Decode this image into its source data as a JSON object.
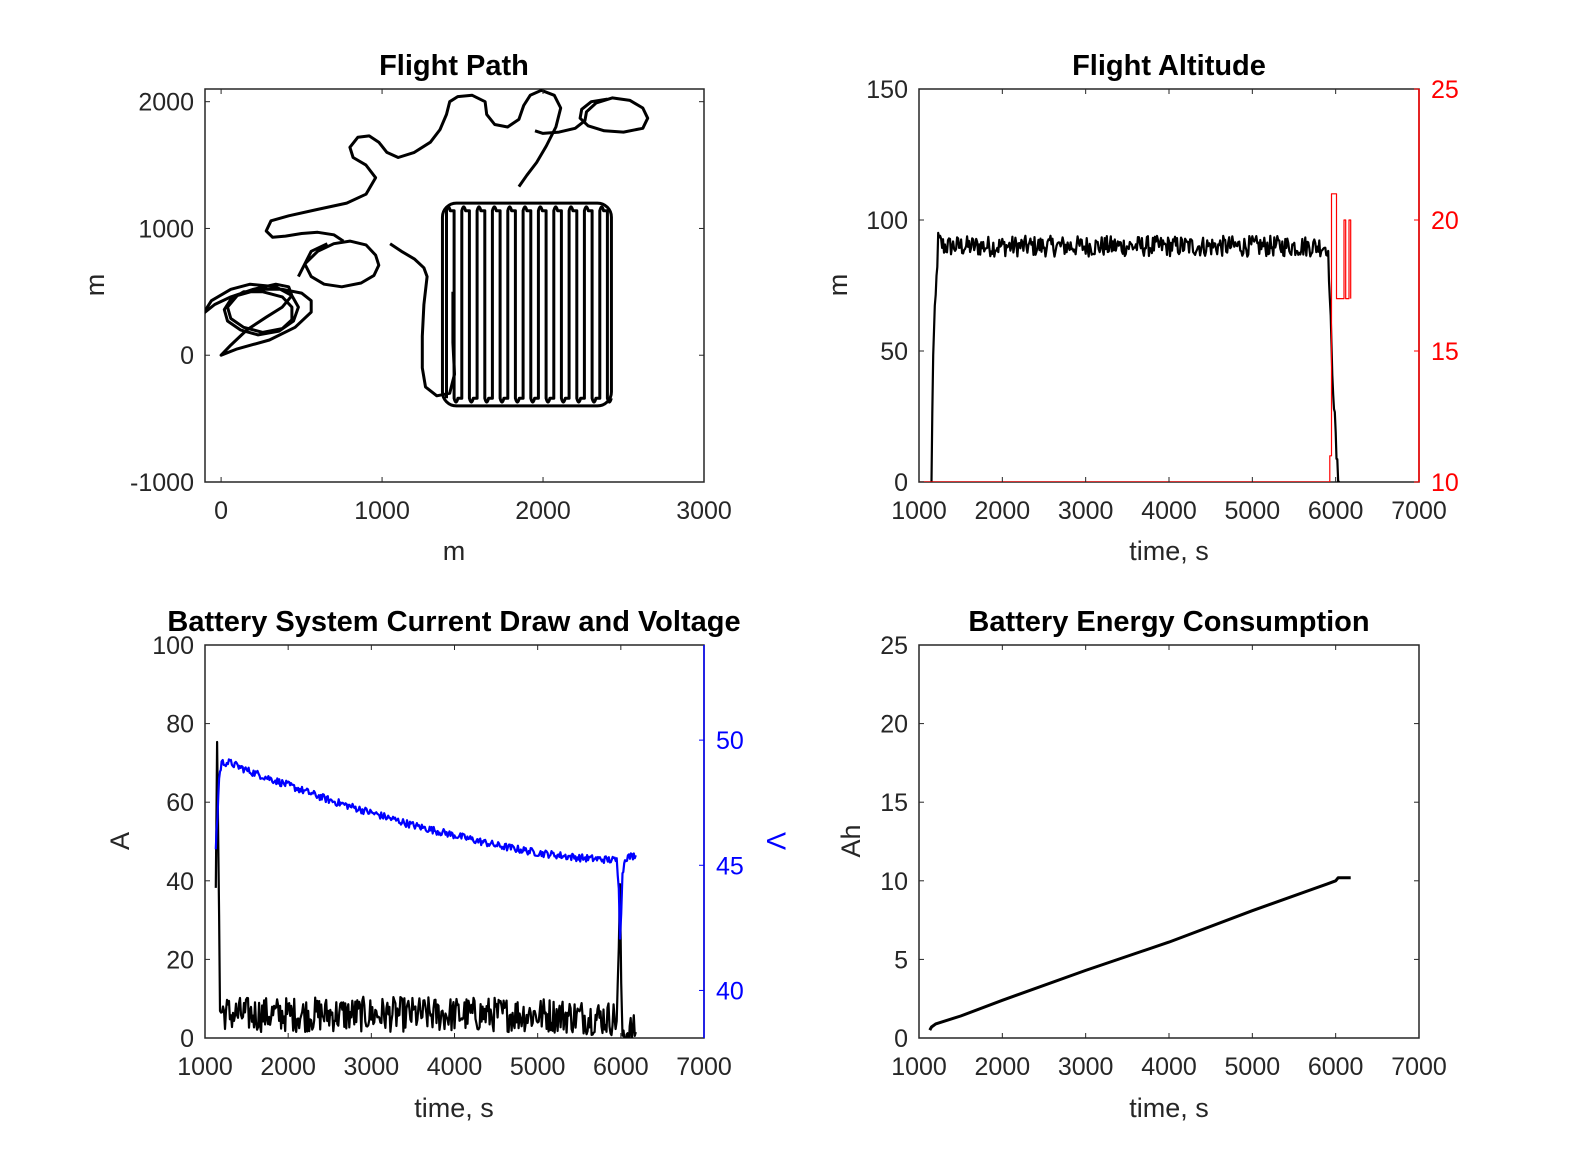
{
  "chart_data": [
    {
      "id": "flight_path",
      "type": "line",
      "title": "Flight Path",
      "xlabel": "m",
      "ylabel": "m",
      "xlim": [
        -100,
        3000
      ],
      "ylim": [
        -1000,
        2100
      ],
      "xticks": [
        0,
        1000,
        2000,
        3000
      ],
      "yticks": [
        -1000,
        0,
        1000,
        2000
      ],
      "grid": false,
      "series": [
        {
          "color": "#000000",
          "segments": [
            [
              [
                -150,
                250
              ],
              [
                -120,
                320
              ],
              [
                -40,
                400
              ],
              [
                60,
                460
              ],
              [
                200,
                520
              ],
              [
                340,
                560
              ],
              [
                420,
                540
              ],
              [
                440,
                470
              ],
              [
                380,
                380
              ],
              [
                280,
                300
              ],
              [
                160,
                200
              ],
              [
                60,
                80
              ],
              [
                0,
                0
              ],
              [
                100,
                50
              ],
              [
                300,
                120
              ],
              [
                460,
                220
              ],
              [
                560,
                340
              ],
              [
                560,
                430
              ],
              [
                500,
                490
              ],
              [
                380,
                520
              ],
              [
                240,
                520
              ],
              [
                100,
                470
              ],
              [
                40,
                380
              ],
              [
                60,
                290
              ],
              [
                140,
                220
              ],
              [
                260,
                180
              ],
              [
                380,
                210
              ],
              [
                440,
                280
              ],
              [
                440,
                380
              ],
              [
                380,
                460
              ],
              [
                260,
                500
              ],
              [
                140,
                500
              ],
              [
                60,
                440
              ],
              [
                20,
                360
              ],
              [
                40,
                270
              ],
              [
                120,
                200
              ],
              [
                230,
                160
              ],
              [
                360,
                190
              ],
              [
                450,
                270
              ],
              [
                480,
                380
              ],
              [
                440,
                470
              ],
              [
                340,
                540
              ],
              [
                180,
                560
              ],
              [
                60,
                520
              ],
              [
                -60,
                430
              ],
              [
                -150,
                250
              ]
            ],
            [
              [
                480,
                620
              ],
              [
                520,
                720
              ],
              [
                600,
                820
              ],
              [
                700,
                880
              ],
              [
                800,
                900
              ],
              [
                900,
                870
              ],
              [
                960,
                790
              ],
              [
                980,
                710
              ],
              [
                950,
                630
              ],
              [
                870,
                570
              ],
              [
                750,
                540
              ],
              [
                640,
                560
              ],
              [
                560,
                620
              ],
              [
                520,
                720
              ],
              [
                560,
                820
              ],
              [
                660,
                880
              ]
            ],
            [
              [
                760,
                900
              ],
              [
                700,
                950
              ],
              [
                600,
                970
              ],
              [
                500,
                960
              ],
              [
                400,
                940
              ],
              [
                320,
                930
              ],
              [
                280,
                980
              ],
              [
                310,
                1060
              ],
              [
                420,
                1100
              ],
              [
                600,
                1150
              ],
              [
                780,
                1200
              ],
              [
                900,
                1270
              ],
              [
                960,
                1400
              ],
              [
                900,
                1500
              ],
              [
                820,
                1560
              ],
              [
                800,
                1640
              ],
              [
                850,
                1720
              ],
              [
                920,
                1730
              ],
              [
                980,
                1680
              ],
              [
                1030,
                1600
              ],
              [
                1100,
                1560
              ],
              [
                1200,
                1600
              ],
              [
                1300,
                1680
              ],
              [
                1360,
                1780
              ],
              [
                1400,
                1900
              ],
              [
                1420,
                2000
              ],
              [
                1470,
                2040
              ],
              [
                1560,
                2050
              ],
              [
                1640,
                2000
              ],
              [
                1650,
                1900
              ],
              [
                1700,
                1820
              ],
              [
                1780,
                1800
              ],
              [
                1850,
                1860
              ],
              [
                1880,
                1970
              ],
              [
                1920,
                2050
              ],
              [
                1990,
                2090
              ],
              [
                2070,
                2050
              ],
              [
                2110,
                1950
              ],
              [
                2080,
                1800
              ],
              [
                2020,
                1650
              ],
              [
                1960,
                1520
              ],
              [
                1900,
                1420
              ],
              [
                1850,
                1330
              ]
            ],
            [
              [
                1050,
                880
              ],
              [
                1120,
                820
              ],
              [
                1200,
                760
              ],
              [
                1260,
                690
              ],
              [
                1280,
                620
              ],
              [
                1260,
                400
              ],
              [
                1250,
                150
              ],
              [
                1250,
                -100
              ],
              [
                1270,
                -250
              ],
              [
                1340,
                -320
              ],
              [
                1420,
                -300
              ],
              [
                1450,
                -150
              ],
              [
                1440,
                100
              ],
              [
                1440,
                500
              ]
            ],
            [
              [
                2400,
                2020
              ],
              [
                2300,
                2000
              ],
              [
                2240,
                1940
              ],
              [
                2230,
                1870
              ],
              [
                2280,
                1810
              ],
              [
                2380,
                1770
              ],
              [
                2500,
                1760
              ],
              [
                2620,
                1790
              ],
              [
                2650,
                1870
              ],
              [
                2620,
                1950
              ],
              [
                2540,
                2010
              ],
              [
                2430,
                2030
              ],
              [
                2330,
                1990
              ],
              [
                2270,
                1920
              ],
              [
                2260,
                1850
              ],
              [
                2200,
                1790
              ],
              [
                2100,
                1760
              ],
              [
                2000,
                1750
              ],
              [
                1950,
                1770
              ]
            ]
          ]
        }
      ],
      "raster_box": {
        "x": [
          1400,
          2400
        ],
        "y": [
          -400,
          1200
        ],
        "passes": 22
      }
    },
    {
      "id": "flight_altitude",
      "type": "line",
      "title": "Flight Altitude",
      "xlabel": "time, s",
      "ylabel": "m",
      "xlim": [
        1000,
        7000
      ],
      "ylim": [
        0,
        150
      ],
      "xticks": [
        1000,
        2000,
        3000,
        4000,
        5000,
        6000,
        7000
      ],
      "yticks": [
        0,
        50,
        100,
        150
      ],
      "y2lim": [
        10,
        25
      ],
      "y2ticks": [
        10,
        15,
        20,
        25
      ],
      "y2_color": "#ff0000",
      "grid": false,
      "series": [
        {
          "color": "#000000",
          "points": [
            [
              1150,
              0
            ],
            [
              1170,
              50
            ],
            [
              1200,
              70
            ],
            [
              1230,
              92
            ],
            [
              1300,
              90
            ],
            [
              2000,
              90
            ],
            [
              3000,
              90
            ],
            [
              4000,
              90
            ],
            [
              5000,
              90
            ],
            [
              5600,
              90
            ],
            [
              5900,
              90
            ],
            [
              5920,
              80
            ],
            [
              5950,
              50
            ],
            [
              5980,
              30
            ],
            [
              6010,
              10
            ],
            [
              6030,
              0
            ],
            [
              6050,
              0
            ]
          ],
          "noise": 4
        },
        {
          "color": "#ff0000",
          "axis": "right",
          "points": [
            [
              1000,
              10
            ],
            [
              5900,
              10
            ],
            [
              5930,
              10
            ],
            [
              5930,
              11
            ],
            [
              5950,
              11
            ],
            [
              5950,
              21
            ],
            [
              6010,
              21
            ],
            [
              6010,
              17
            ],
            [
              6100,
              17
            ],
            [
              6100,
              20
            ],
            [
              6120,
              20
            ],
            [
              6120,
              17
            ],
            [
              6160,
              17
            ],
            [
              6160,
              20
            ],
            [
              6180,
              20
            ],
            [
              6180,
              17
            ]
          ]
        }
      ]
    },
    {
      "id": "battery_current_voltage",
      "type": "line",
      "title": "Battery System Current Draw and Voltage",
      "xlabel": "time, s",
      "ylabel": "A",
      "y2label": "V",
      "xlim": [
        1000,
        7000
      ],
      "ylim": [
        0,
        100
      ],
      "xticks": [
        1000,
        2000,
        3000,
        4000,
        5000,
        6000,
        7000
      ],
      "yticks": [
        0,
        20,
        40,
        60,
        80,
        100
      ],
      "y2lim": [
        38.1,
        53.8
      ],
      "y2ticks": [
        40,
        45,
        50
      ],
      "y2_color": "#0000ff",
      "grid": false,
      "series": [
        {
          "color": "#000000",
          "axis": "left",
          "points": [
            [
              1130,
              40
            ],
            [
              1145,
              79
            ],
            [
              1160,
              50
            ],
            [
              1170,
              30
            ],
            [
              1180,
              7
            ],
            [
              1300,
              6
            ],
            [
              2000,
              6
            ],
            [
              3000,
              6
            ],
            [
              4000,
              6
            ],
            [
              5000,
              6
            ],
            [
              5900,
              5
            ],
            [
              5950,
              5
            ],
            [
              5975,
              20
            ],
            [
              5990,
              40
            ],
            [
              6005,
              10
            ],
            [
              6020,
              1.5
            ],
            [
              6180,
              1.5
            ]
          ],
          "noise": 4.5
        },
        {
          "color": "#0000ff",
          "axis": "right",
          "points": [
            [
              1130,
              45.7
            ],
            [
              1150,
              47
            ],
            [
              1170,
              48.5
            ],
            [
              1200,
              49.1
            ],
            [
              1300,
              49.1
            ],
            [
              1500,
              48.8
            ],
            [
              2000,
              48.2
            ],
            [
              2500,
              47.6
            ],
            [
              3000,
              47.1
            ],
            [
              3500,
              46.6
            ],
            [
              4000,
              46.2
            ],
            [
              4500,
              45.8
            ],
            [
              5000,
              45.5
            ],
            [
              5500,
              45.3
            ],
            [
              5950,
              45.2
            ],
            [
              5975,
              44.2
            ],
            [
              5990,
              42.2
            ],
            [
              6005,
              43.2
            ],
            [
              6020,
              44.6
            ],
            [
              6050,
              45.3
            ],
            [
              6180,
              45.4
            ]
          ],
          "noise": 0.15
        }
      ]
    },
    {
      "id": "battery_energy",
      "type": "line",
      "title": "Battery Energy Consumption",
      "xlabel": "time, s",
      "ylabel": "Ah",
      "xlim": [
        1000,
        7000
      ],
      "ylim": [
        0,
        25
      ],
      "xticks": [
        1000,
        2000,
        3000,
        4000,
        5000,
        6000,
        7000
      ],
      "yticks": [
        0,
        5,
        10,
        15,
        20,
        25
      ],
      "grid": false,
      "series": [
        {
          "color": "#000000",
          "points": [
            [
              1130,
              0.5
            ],
            [
              1150,
              0.7
            ],
            [
              1200,
              0.9
            ],
            [
              1500,
              1.4
            ],
            [
              2000,
              2.4
            ],
            [
              3000,
              4.3
            ],
            [
              4000,
              6.1
            ],
            [
              5000,
              8.1
            ],
            [
              5900,
              9.8
            ],
            [
              6000,
              10.0
            ],
            [
              6030,
              10.2
            ],
            [
              6060,
              10.2
            ],
            [
              6180,
              10.2
            ]
          ]
        }
      ]
    }
  ]
}
